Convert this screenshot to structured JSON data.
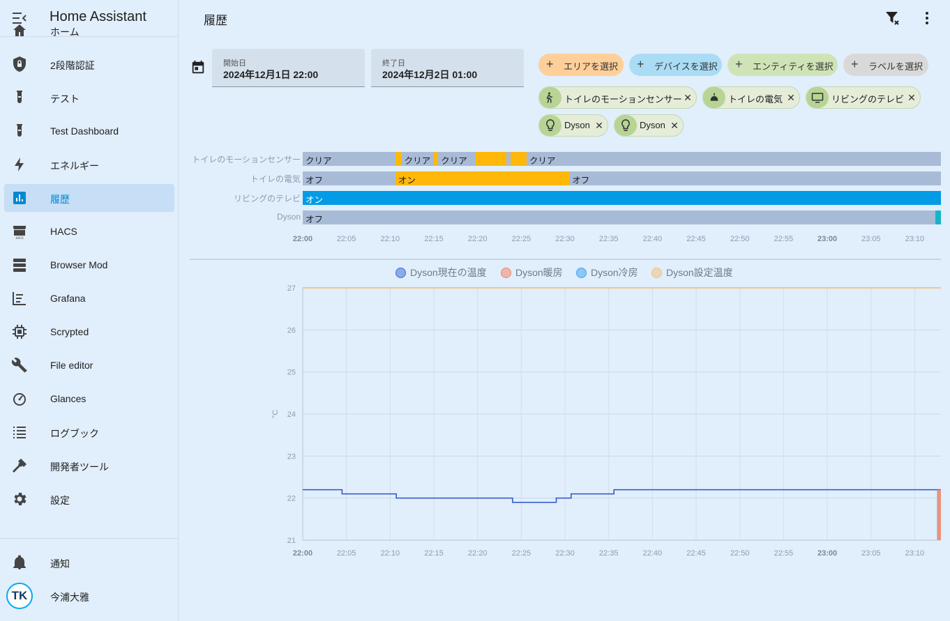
{
  "app": {
    "title": "Home Assistant"
  },
  "sidebar": {
    "items": [
      {
        "label": "ホーム",
        "icon": "home-icon"
      },
      {
        "label": "2段階認証",
        "icon": "shield-lock-icon"
      },
      {
        "label": "テスト",
        "icon": "test-tube-icon"
      },
      {
        "label": "Test Dashboard",
        "icon": "test-tube-icon"
      },
      {
        "label": "エネルギー",
        "icon": "lightning-icon"
      },
      {
        "label": "履歴",
        "icon": "chart-box-icon",
        "active": true
      },
      {
        "label": "HACS",
        "icon": "hacs-store-icon"
      },
      {
        "label": "Browser Mod",
        "icon": "server-icon"
      },
      {
        "label": "Grafana",
        "icon": "chart-timeline-icon"
      },
      {
        "label": "Scrypted",
        "icon": "chip-icon"
      },
      {
        "label": "File editor",
        "icon": "wrench-icon"
      },
      {
        "label": "Glances",
        "icon": "speedometer-icon"
      },
      {
        "label": "ログブック",
        "icon": "format-list-icon"
      },
      {
        "label": "開発者ツール",
        "icon": "hammer-icon"
      },
      {
        "label": "設定",
        "icon": "cog-icon"
      }
    ],
    "notifications_label": "通知",
    "user": {
      "name": "今浦大雅",
      "initials": "TK"
    }
  },
  "header": {
    "title": "履歴"
  },
  "date_range": {
    "start_caption": "開始日",
    "start_value": "2024年12月1日 22:00",
    "end_caption": "終了日",
    "end_value": "2024年12月2日 01:00"
  },
  "target_picker": {
    "add_area": "エリアを選択",
    "add_device": "デバイスを選択",
    "add_entity": "エンティティを選択",
    "add_label": "ラベルを選択",
    "colors": {
      "area": "#ffcf99",
      "device": "#aadcf5",
      "entity": "#cfe4b6",
      "label": "#d9d9d9"
    }
  },
  "selected_entities": [
    {
      "name": "トイレのモーションセンサー",
      "icon": "motion-sensor-icon"
    },
    {
      "name": "トイレの電気",
      "icon": "ceiling-light-icon"
    },
    {
      "name": "リビングのテレビ",
      "icon": "television-icon"
    },
    {
      "name": "Dyson",
      "icon": "lightbulb-icon"
    },
    {
      "name": "Dyson",
      "icon": "lightbulb-icon"
    }
  ],
  "timeline": {
    "ticks": [
      "22:00",
      "22:05",
      "22:10",
      "22:15",
      "22:20",
      "22:25",
      "22:30",
      "22:35",
      "22:40",
      "22:45",
      "22:50",
      "22:55",
      "23:00",
      "23:05",
      "23:10"
    ],
    "range_minutes": [
      0,
      73
    ],
    "colors": {
      "off": "#a8bbd6",
      "on": "#ffb80a",
      "tv_on": "#039be5",
      "teal": "#13b5c9"
    },
    "rows": [
      {
        "label": "トイレのモーションセンサー",
        "segments": [
          {
            "start": 0,
            "end": 10.6,
            "state": "クリア",
            "kind": "off"
          },
          {
            "start": 10.6,
            "end": 11.3,
            "state": "",
            "kind": "on"
          },
          {
            "start": 11.3,
            "end": 14.9,
            "state": "クリア",
            "kind": "off"
          },
          {
            "start": 14.9,
            "end": 15.5,
            "state": "",
            "kind": "on"
          },
          {
            "start": 15.5,
            "end": 19.8,
            "state": "クリア",
            "kind": "off"
          },
          {
            "start": 19.8,
            "end": 23.3,
            "state": "",
            "kind": "on"
          },
          {
            "start": 23.3,
            "end": 23.8,
            "state": "",
            "kind": "off"
          },
          {
            "start": 23.8,
            "end": 25.6,
            "state": "",
            "kind": "on"
          },
          {
            "start": 25.6,
            "end": 73,
            "state": "クリア",
            "kind": "off"
          }
        ]
      },
      {
        "label": "トイレの電気",
        "segments": [
          {
            "start": 0,
            "end": 10.6,
            "state": "オフ",
            "kind": "off"
          },
          {
            "start": 10.6,
            "end": 30.5,
            "state": "オン",
            "kind": "on"
          },
          {
            "start": 30.5,
            "end": 73,
            "state": "オフ",
            "kind": "off"
          }
        ]
      },
      {
        "label": "リビングのテレビ",
        "segments": [
          {
            "start": 0,
            "end": 73,
            "state": "オン",
            "kind": "tv_on"
          }
        ]
      },
      {
        "label": "Dyson",
        "segments": [
          {
            "start": 0,
            "end": 72.4,
            "state": "オフ",
            "kind": "off"
          },
          {
            "start": 72.4,
            "end": 73,
            "state": "",
            "kind": "teal"
          }
        ]
      }
    ]
  },
  "chart_data": {
    "type": "line",
    "ylabel": "°C",
    "ylim": [
      21,
      27
    ],
    "yticks": [
      21,
      22,
      23,
      24,
      25,
      26,
      27
    ],
    "xlim_minutes": [
      0,
      73
    ],
    "xticks": [
      "22:00",
      "22:05",
      "22:10",
      "22:15",
      "22:20",
      "22:25",
      "22:30",
      "22:35",
      "22:40",
      "22:45",
      "22:50",
      "22:55",
      "23:00",
      "23:05",
      "23:10"
    ],
    "bold_xticks": [
      "22:00",
      "23:00"
    ],
    "legend": [
      {
        "name": "Dyson現在の温度",
        "color": "#3f6fd6"
      },
      {
        "name": "Dyson暖房",
        "color": "#f1876a"
      },
      {
        "name": "Dyson冷房",
        "color": "#41a4ef"
      },
      {
        "name": "Dyson設定温度",
        "color": "#f3c27a"
      }
    ],
    "series": [
      {
        "name": "Dyson現在の温度",
        "color": "#2a55c8",
        "step": true,
        "points": [
          [
            0,
            22.2
          ],
          [
            4.5,
            22.1
          ],
          [
            10.7,
            22.0
          ],
          [
            24.0,
            21.9
          ],
          [
            29.0,
            22.0
          ],
          [
            30.7,
            22.1
          ],
          [
            35.6,
            22.2
          ],
          [
            73,
            22.2
          ]
        ]
      },
      {
        "name": "Dyson設定温度",
        "color": "#f2b24a",
        "step": true,
        "points": [
          [
            0,
            27
          ],
          [
            73,
            27
          ]
        ]
      },
      {
        "name": "Dyson暖房",
        "color": "#f1876a",
        "type": "area_band",
        "range": [
          72.6,
          73
        ]
      }
    ]
  }
}
